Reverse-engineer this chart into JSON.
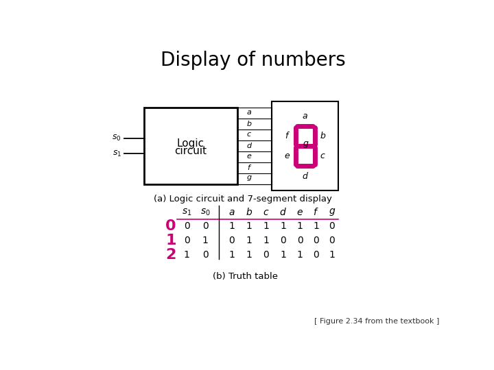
{
  "title": "Display of numbers",
  "title_fontsize": 20,
  "title_fontweight": "normal",
  "bg_color": "#ffffff",
  "magenta": "#CC0077",
  "black": "#000000",
  "caption_a": "(a) Logic circuit and 7-segment display",
  "caption_b": "(b) Truth table",
  "figure_ref": "[ Figure 2.34 from the textbook ]",
  "table_rows": [
    [
      "0",
      "0",
      "1",
      "1",
      "1",
      "1",
      "1",
      "1",
      "0"
    ],
    [
      "0",
      "1",
      "0",
      "1",
      "1",
      "0",
      "0",
      "0",
      "0"
    ],
    [
      "1",
      "0",
      "1",
      "1",
      "0",
      "1",
      "1",
      "0",
      "1"
    ]
  ],
  "row_labels": [
    "0",
    "1",
    "2"
  ],
  "segment_labels": [
    "a",
    "b",
    "c",
    "d",
    "e",
    "f",
    "g"
  ]
}
